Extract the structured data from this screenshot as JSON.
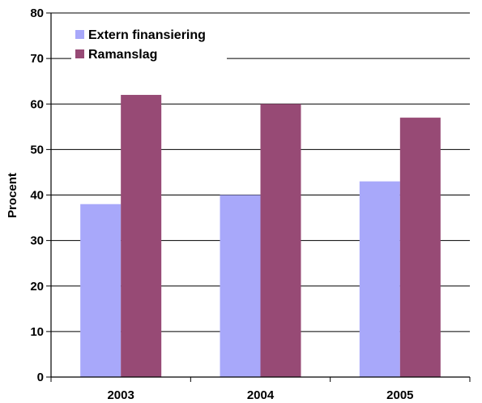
{
  "chart_data": {
    "type": "bar",
    "categories": [
      "2003",
      "2004",
      "2005"
    ],
    "series": [
      {
        "name": "Extern finansiering",
        "values": [
          38,
          40,
          43
        ],
        "color": "#a8a8fa"
      },
      {
        "name": "Ramanslag",
        "values": [
          62,
          60,
          57
        ],
        "color": "#974a75"
      }
    ],
    "ylabel": "Procent",
    "xlabel": "",
    "ylim": [
      0,
      80
    ],
    "yticks": [
      0,
      10,
      20,
      30,
      40,
      50,
      60,
      70,
      80
    ],
    "grid": true,
    "legend_position": "top-left"
  }
}
